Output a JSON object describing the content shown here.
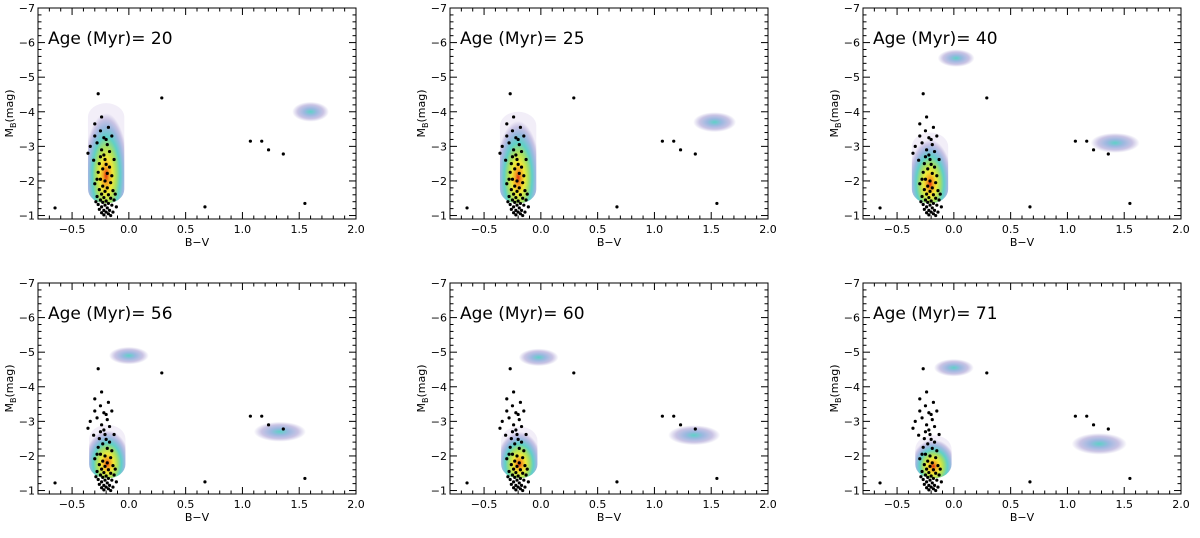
{
  "chart_data": [
    {
      "type": "scatter",
      "age_label": "Age (Myr)= 20",
      "xlabel": "B−V",
      "ylabel_main": "M",
      "ylabel_sub": "B",
      "ylabel_tail": "(mag)",
      "xlim": [
        -0.8,
        2.0
      ],
      "ylim": [
        -0.9,
        -7.0
      ],
      "x_ticks": [
        -0.5,
        0.0,
        0.5,
        1.0,
        1.5,
        2.0
      ],
      "x_tick_labels": [
        "−0.5",
        "0.0",
        "0.5",
        "1.0",
        "1.5",
        "2.0"
      ],
      "y_ticks": [
        -1,
        -2,
        -3,
        -4,
        -5,
        -6,
        -7
      ],
      "y_tick_labels": [
        "−1",
        "−2",
        "−3",
        "−4",
        "−5",
        "−6",
        "−7"
      ],
      "main_sequence_density": {
        "x_center": -0.2,
        "x_halfwidth": 0.14,
        "y_top": -4.25,
        "y_bottom": -1.0
      },
      "clumps": [
        {
          "x": 1.6,
          "y": -4.0,
          "rx": 0.12,
          "ry": 0.25
        }
      ],
      "gradient_colors": [
        "#f2eef8",
        "#c9c3e4",
        "#9cb8e0",
        "#5fd0c8",
        "#a8e060",
        "#f0e838",
        "#f4a020",
        "#e03010"
      ]
    },
    {
      "type": "scatter",
      "age_label": "Age (Myr)= 25",
      "xlabel": "B−V",
      "ylabel_main": "M",
      "ylabel_sub": "B",
      "ylabel_tail": "(mag)",
      "xlim": [
        -0.8,
        2.0
      ],
      "ylim": [
        -0.9,
        -7.0
      ],
      "x_ticks": [
        -0.5,
        0.0,
        0.5,
        1.0,
        1.5,
        2.0
      ],
      "x_tick_labels": [
        "−0.5",
        "0.0",
        "0.5",
        "1.0",
        "1.5",
        "2.0"
      ],
      "y_ticks": [
        -1,
        -2,
        -3,
        -4,
        -5,
        -6,
        -7
      ],
      "y_tick_labels": [
        "−1",
        "−2",
        "−3",
        "−4",
        "−5",
        "−6",
        "−7"
      ],
      "main_sequence_density": {
        "x_center": -0.2,
        "x_halfwidth": 0.14,
        "y_top": -4.0,
        "y_bottom": -1.0
      },
      "clumps": [
        {
          "x": 1.53,
          "y": -3.7,
          "rx": 0.14,
          "ry": 0.25
        }
      ],
      "gradient_colors": [
        "#f2eef8",
        "#c9c3e4",
        "#9cb8e0",
        "#5fd0c8",
        "#a8e060",
        "#f0e838",
        "#f4a020",
        "#e03010"
      ]
    },
    {
      "type": "scatter",
      "age_label": "Age (Myr)= 40",
      "xlabel": "B−V",
      "ylabel_main": "M",
      "ylabel_sub": "B",
      "ylabel_tail": "(mag)",
      "xlim": [
        -0.8,
        2.0
      ],
      "ylim": [
        -0.9,
        -7.0
      ],
      "x_ticks": [
        -0.5,
        0.0,
        0.5,
        1.0,
        1.5,
        2.0
      ],
      "x_tick_labels": [
        "−0.5",
        "0.0",
        "0.5",
        "1.0",
        "1.5",
        "2.0"
      ],
      "y_ticks": [
        -1,
        -2,
        -3,
        -4,
        -5,
        -6,
        -7
      ],
      "y_tick_labels": [
        "−1",
        "−2",
        "−3",
        "−4",
        "−5",
        "−6",
        "−7"
      ],
      "main_sequence_density": {
        "x_center": -0.21,
        "x_halfwidth": 0.14,
        "y_top": -3.4,
        "y_bottom": -1.0
      },
      "clumps": [
        {
          "x": 0.02,
          "y": -5.55,
          "rx": 0.12,
          "ry": 0.22
        },
        {
          "x": 1.42,
          "y": -3.1,
          "rx": 0.16,
          "ry": 0.25
        }
      ],
      "gradient_colors": [
        "#f2eef8",
        "#c9c3e4",
        "#9cb8e0",
        "#5fd0c8",
        "#a8e060",
        "#f0e838",
        "#f4a020",
        "#e03010"
      ]
    },
    {
      "type": "scatter",
      "age_label": "Age (Myr)= 56",
      "xlabel": "B−V",
      "ylabel_main": "M",
      "ylabel_sub": "B",
      "ylabel_tail": "(mag)",
      "xlim": [
        -0.8,
        2.0
      ],
      "ylim": [
        -0.9,
        -7.0
      ],
      "x_ticks": [
        -0.5,
        0.0,
        0.5,
        1.0,
        1.5,
        2.0
      ],
      "x_tick_labels": [
        "−0.5",
        "0.0",
        "0.5",
        "1.0",
        "1.5",
        "2.0"
      ],
      "y_ticks": [
        -1,
        -2,
        -3,
        -4,
        -5,
        -6,
        -7
      ],
      "y_tick_labels": [
        "−1",
        "−2",
        "−3",
        "−4",
        "−5",
        "−6",
        "−7"
      ],
      "main_sequence_density": {
        "x_center": -0.19,
        "x_halfwidth": 0.14,
        "y_top": -2.9,
        "y_bottom": -1.0
      },
      "clumps": [
        {
          "x": 0.0,
          "y": -4.9,
          "rx": 0.13,
          "ry": 0.22
        },
        {
          "x": 1.33,
          "y": -2.7,
          "rx": 0.17,
          "ry": 0.25
        }
      ],
      "gradient_colors": [
        "#f2eef8",
        "#c9c3e4",
        "#9cb8e0",
        "#5fd0c8",
        "#a8e060",
        "#f0e838",
        "#f4a020",
        "#e03010"
      ]
    },
    {
      "type": "scatter",
      "age_label": "Age (Myr)= 60",
      "xlabel": "B−V",
      "ylabel_main": "M",
      "ylabel_sub": "B",
      "ylabel_tail": "(mag)",
      "xlim": [
        -0.8,
        2.0
      ],
      "ylim": [
        -0.9,
        -7.0
      ],
      "x_ticks": [
        -0.5,
        0.0,
        0.5,
        1.0,
        1.5,
        2.0
      ],
      "x_tick_labels": [
        "−0.5",
        "0.0",
        "0.5",
        "1.0",
        "1.5",
        "2.0"
      ],
      "y_ticks": [
        -1,
        -2,
        -3,
        -4,
        -5,
        -6,
        -7
      ],
      "y_tick_labels": [
        "−1",
        "−2",
        "−3",
        "−4",
        "−5",
        "−6",
        "−7"
      ],
      "main_sequence_density": {
        "x_center": -0.19,
        "x_halfwidth": 0.14,
        "y_top": -2.85,
        "y_bottom": -1.0
      },
      "clumps": [
        {
          "x": -0.02,
          "y": -4.85,
          "rx": 0.13,
          "ry": 0.22
        },
        {
          "x": 1.35,
          "y": -2.6,
          "rx": 0.17,
          "ry": 0.25
        }
      ],
      "gradient_colors": [
        "#f2eef8",
        "#c9c3e4",
        "#9cb8e0",
        "#5fd0c8",
        "#a8e060",
        "#f0e838",
        "#f4a020",
        "#e03010"
      ]
    },
    {
      "type": "scatter",
      "age_label": "Age (Myr)= 71",
      "xlabel": "B−V",
      "ylabel_main": "M",
      "ylabel_sub": "B",
      "ylabel_tail": "(mag)",
      "xlim": [
        -0.8,
        2.0
      ],
      "ylim": [
        -0.9,
        -7.0
      ],
      "x_ticks": [
        -0.5,
        0.0,
        0.5,
        1.0,
        1.5,
        2.0
      ],
      "x_tick_labels": [
        "−0.5",
        "0.0",
        "0.5",
        "1.0",
        "1.5",
        "2.0"
      ],
      "y_ticks": [
        -1,
        -2,
        -3,
        -4,
        -5,
        -6,
        -7
      ],
      "y_tick_labels": [
        "−1",
        "−2",
        "−3",
        "−4",
        "−5",
        "−6",
        "−7"
      ],
      "main_sequence_density": {
        "x_center": -0.18,
        "x_halfwidth": 0.14,
        "y_top": -2.6,
        "y_bottom": -1.0
      },
      "clumps": [
        {
          "x": 0.0,
          "y": -4.55,
          "rx": 0.13,
          "ry": 0.22
        },
        {
          "x": 1.28,
          "y": -2.35,
          "rx": 0.18,
          "ry": 0.27
        }
      ],
      "gradient_colors": [
        "#f2eef8",
        "#c9c3e4",
        "#9cb8e0",
        "#5fd0c8",
        "#a8e060",
        "#f0e838",
        "#f4a020",
        "#e03010"
      ]
    }
  ],
  "cluster_stars": [
    [
      -0.65,
      -1.22
    ],
    [
      0.29,
      -4.4
    ],
    [
      0.67,
      -1.25
    ],
    [
      1.07,
      -3.15
    ],
    [
      1.17,
      -3.15
    ],
    [
      1.23,
      -2.9
    ],
    [
      1.36,
      -2.78
    ],
    [
      1.55,
      -1.35
    ],
    [
      -0.27,
      -4.52
    ],
    [
      -0.24,
      -3.85
    ],
    [
      -0.3,
      -3.65
    ],
    [
      -0.25,
      -3.45
    ],
    [
      -0.18,
      -3.55
    ],
    [
      -0.15,
      -3.3
    ],
    [
      -0.3,
      -3.3
    ],
    [
      -0.22,
      -3.25
    ],
    [
      -0.2,
      -3.2
    ],
    [
      -0.28,
      -3.1
    ],
    [
      -0.34,
      -3.0
    ],
    [
      -0.19,
      -3.05
    ],
    [
      -0.24,
      -2.9
    ],
    [
      -0.36,
      -2.8
    ],
    [
      -0.17,
      -2.85
    ],
    [
      -0.22,
      -2.75
    ],
    [
      -0.25,
      -2.7
    ],
    [
      -0.21,
      -2.62
    ],
    [
      -0.13,
      -2.62
    ],
    [
      -0.26,
      -2.5
    ],
    [
      -0.2,
      -2.48
    ],
    [
      -0.17,
      -2.4
    ],
    [
      -0.23,
      -2.35
    ],
    [
      -0.27,
      -2.25
    ],
    [
      -0.19,
      -2.22
    ],
    [
      -0.15,
      -2.15
    ],
    [
      -0.25,
      -2.05
    ],
    [
      -0.21,
      -2.0
    ],
    [
      -0.3,
      -1.92
    ],
    [
      -0.16,
      -1.95
    ],
    [
      -0.23,
      -1.85
    ],
    [
      -0.19,
      -1.8
    ],
    [
      -0.26,
      -1.75
    ],
    [
      -0.21,
      -1.7
    ],
    [
      -0.14,
      -1.72
    ],
    [
      -0.24,
      -1.62
    ],
    [
      -0.18,
      -1.6
    ],
    [
      -0.28,
      -1.55
    ],
    [
      -0.22,
      -1.52
    ],
    [
      -0.16,
      -1.5
    ],
    [
      -0.25,
      -1.45
    ],
    [
      -0.2,
      -1.42
    ],
    [
      -0.13,
      -1.45
    ],
    [
      -0.23,
      -1.38
    ],
    [
      -0.18,
      -1.35
    ],
    [
      -0.27,
      -1.32
    ],
    [
      -0.21,
      -1.3
    ],
    [
      -0.15,
      -1.3
    ],
    [
      -0.24,
      -1.25
    ],
    [
      -0.19,
      -1.22
    ],
    [
      -0.11,
      -1.25
    ],
    [
      -0.26,
      -1.18
    ],
    [
      -0.22,
      -1.15
    ],
    [
      -0.17,
      -1.15
    ],
    [
      -0.2,
      -1.1
    ],
    [
      -0.24,
      -1.08
    ],
    [
      -0.14,
      -1.1
    ],
    [
      -0.18,
      -1.05
    ],
    [
      -0.22,
      -1.02
    ],
    [
      -0.16,
      -1.0
    ],
    [
      -0.29,
      -1.4
    ],
    [
      -0.12,
      -1.62
    ],
    [
      -0.31,
      -2.6
    ],
    [
      -0.28,
      -2.05
    ]
  ]
}
